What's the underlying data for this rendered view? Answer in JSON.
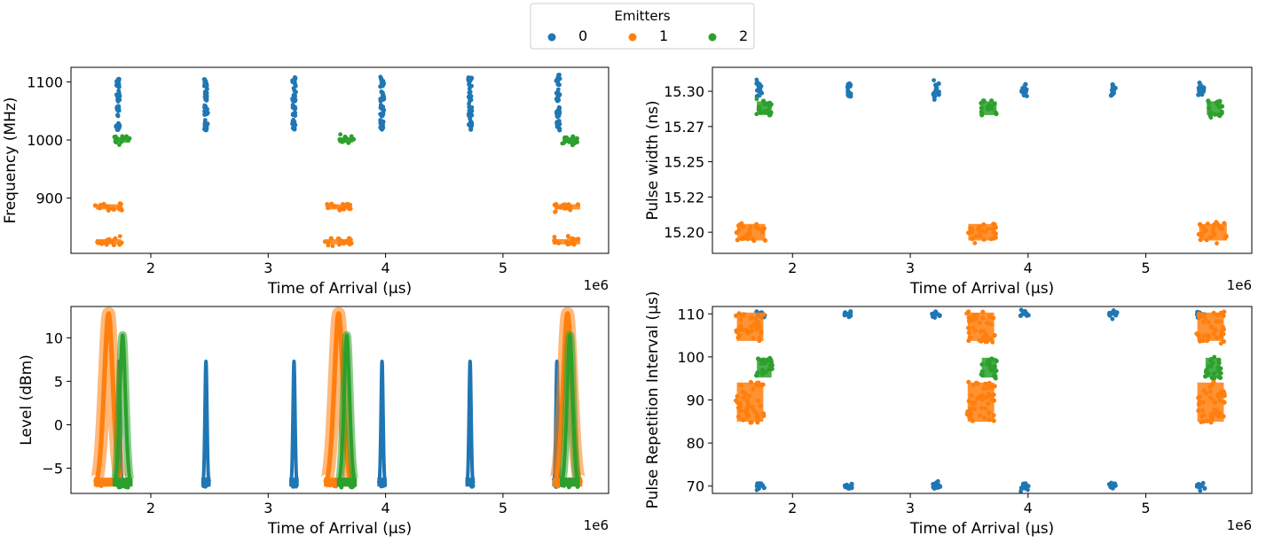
{
  "legend": {
    "title": "Emitters",
    "entries": [
      {
        "label": "0",
        "color": "#1f77b4"
      },
      {
        "label": "1",
        "color": "#ff7f0e"
      },
      {
        "label": "2",
        "color": "#2ca02c"
      }
    ]
  },
  "chart_data": [
    {
      "type": "scatter",
      "id": "freq",
      "xlabel": "Time of Arrival (μs)",
      "ylabel": "Frequency (MHz)",
      "x_offset_label": "1e6",
      "xlim": [
        1.32,
        5.9
      ],
      "ylim": [
        805,
        1125
      ],
      "xticks": [
        2,
        3,
        4,
        5
      ],
      "xtick_labels": [
        "2",
        "3",
        "4",
        "5"
      ],
      "yticks": [
        900,
        1000,
        1100
      ],
      "ytick_labels": [
        "900",
        "1000",
        "1100"
      ],
      "series": [
        {
          "name": "0",
          "color": "#1f77b4",
          "clusters": [
            {
              "x": 1.72,
              "y": 1100,
              "w": 0.03,
              "h": 16
            },
            {
              "x": 1.72,
              "y": 1075,
              "w": 0.03,
              "h": 16
            },
            {
              "x": 1.72,
              "y": 1050,
              "w": 0.03,
              "h": 16
            },
            {
              "x": 1.72,
              "y": 1025,
              "w": 0.03,
              "h": 16
            },
            {
              "x": 2.47,
              "y": 1100,
              "w": 0.03,
              "h": 16
            },
            {
              "x": 2.47,
              "y": 1075,
              "w": 0.03,
              "h": 16
            },
            {
              "x": 2.47,
              "y": 1050,
              "w": 0.03,
              "h": 16
            },
            {
              "x": 2.47,
              "y": 1025,
              "w": 0.03,
              "h": 16
            },
            {
              "x": 3.22,
              "y": 1100,
              "w": 0.03,
              "h": 16
            },
            {
              "x": 3.22,
              "y": 1075,
              "w": 0.03,
              "h": 16
            },
            {
              "x": 3.22,
              "y": 1050,
              "w": 0.03,
              "h": 16
            },
            {
              "x": 3.22,
              "y": 1025,
              "w": 0.03,
              "h": 16
            },
            {
              "x": 3.97,
              "y": 1100,
              "w": 0.03,
              "h": 16
            },
            {
              "x": 3.97,
              "y": 1075,
              "w": 0.03,
              "h": 16
            },
            {
              "x": 3.97,
              "y": 1050,
              "w": 0.03,
              "h": 16
            },
            {
              "x": 3.97,
              "y": 1025,
              "w": 0.03,
              "h": 16
            },
            {
              "x": 4.72,
              "y": 1100,
              "w": 0.03,
              "h": 16
            },
            {
              "x": 4.72,
              "y": 1075,
              "w": 0.03,
              "h": 16
            },
            {
              "x": 4.72,
              "y": 1050,
              "w": 0.03,
              "h": 16
            },
            {
              "x": 4.72,
              "y": 1025,
              "w": 0.03,
              "h": 16
            },
            {
              "x": 5.47,
              "y": 1100,
              "w": 0.03,
              "h": 16
            },
            {
              "x": 5.47,
              "y": 1075,
              "w": 0.03,
              "h": 16
            },
            {
              "x": 5.47,
              "y": 1050,
              "w": 0.03,
              "h": 16
            },
            {
              "x": 5.47,
              "y": 1025,
              "w": 0.03,
              "h": 16
            }
          ]
        },
        {
          "name": "1",
          "color": "#ff7f0e",
          "clusters": [
            {
              "x": 1.64,
              "y": 885,
              "w": 0.23,
              "h": 12
            },
            {
              "x": 1.64,
              "y": 825,
              "w": 0.23,
              "h": 12
            },
            {
              "x": 3.6,
              "y": 885,
              "w": 0.23,
              "h": 12
            },
            {
              "x": 3.6,
              "y": 825,
              "w": 0.23,
              "h": 12
            },
            {
              "x": 5.55,
              "y": 885,
              "w": 0.23,
              "h": 12
            },
            {
              "x": 5.55,
              "y": 825,
              "w": 0.23,
              "h": 12
            }
          ]
        },
        {
          "name": "2",
          "color": "#2ca02c",
          "clusters": [
            {
              "x": 1.76,
              "y": 1000,
              "w": 0.14,
              "h": 12
            },
            {
              "x": 3.66,
              "y": 1000,
              "w": 0.14,
              "h": 12
            },
            {
              "x": 5.57,
              "y": 1000,
              "w": 0.14,
              "h": 12
            }
          ]
        }
      ]
    },
    {
      "type": "scatter",
      "id": "pw",
      "xlabel": "Time of Arrival (μs)",
      "ylabel": "Pulse width (ns)",
      "x_offset_label": "1e6",
      "xlim": [
        1.32,
        5.9
      ],
      "ylim": [
        15.185,
        15.317
      ],
      "xticks": [
        2,
        3,
        4,
        5
      ],
      "xtick_labels": [
        "2",
        "3",
        "4",
        "5"
      ],
      "yticks": [
        15.2,
        15.225,
        15.25,
        15.275,
        15.3
      ],
      "ytick_labels": [
        "15.20",
        "15.22",
        "15.25",
        "15.27",
        "15.30"
      ],
      "series": [
        {
          "name": "0",
          "color": "#1f77b4",
          "clusters": [
            {
              "x": 1.72,
              "y": 15.301,
              "w": 0.05,
              "h": 0.012
            },
            {
              "x": 2.47,
              "y": 15.301,
              "w": 0.05,
              "h": 0.01
            },
            {
              "x": 3.22,
              "y": 15.301,
              "w": 0.05,
              "h": 0.011
            },
            {
              "x": 3.97,
              "y": 15.301,
              "w": 0.05,
              "h": 0.009
            },
            {
              "x": 4.72,
              "y": 15.301,
              "w": 0.05,
              "h": 0.009
            },
            {
              "x": 5.47,
              "y": 15.301,
              "w": 0.05,
              "h": 0.01
            }
          ]
        },
        {
          "name": "1",
          "color": "#ff7f0e",
          "clusters": [
            {
              "x": 1.65,
              "y": 15.2,
              "w": 0.25,
              "h": 0.013
            },
            {
              "x": 3.61,
              "y": 15.2,
              "w": 0.25,
              "h": 0.013
            },
            {
              "x": 5.57,
              "y": 15.2,
              "w": 0.25,
              "h": 0.013
            }
          ]
        },
        {
          "name": "2",
          "color": "#2ca02c",
          "clusters": [
            {
              "x": 1.76,
              "y": 15.288,
              "w": 0.14,
              "h": 0.011
            },
            {
              "x": 3.67,
              "y": 15.288,
              "w": 0.14,
              "h": 0.011
            },
            {
              "x": 5.58,
              "y": 15.288,
              "w": 0.14,
              "h": 0.011
            }
          ]
        }
      ]
    },
    {
      "type": "scatter",
      "id": "level",
      "xlabel": "Time of Arrival (μs)",
      "ylabel": "Level (dBm)",
      "x_offset_label": "1e6",
      "xlim": [
        1.32,
        5.9
      ],
      "ylim": [
        -7.9,
        13.6
      ],
      "xticks": [
        2,
        3,
        4,
        5
      ],
      "xtick_labels": [
        "2",
        "3",
        "4",
        "5"
      ],
      "yticks": [
        -5,
        0,
        5,
        10
      ],
      "ytick_labels": [
        "−5",
        "0",
        "5",
        "10"
      ],
      "series": [
        {
          "name": "0",
          "color": "#1f77b4",
          "peaks": [
            {
              "x": 1.73,
              "peak": 7.3,
              "halfwidth": 0.025
            },
            {
              "x": 2.47,
              "peak": 7.3,
              "halfwidth": 0.025
            },
            {
              "x": 3.22,
              "peak": 7.3,
              "halfwidth": 0.025
            },
            {
              "x": 3.97,
              "peak": 7.3,
              "halfwidth": 0.025
            },
            {
              "x": 4.72,
              "peak": 7.3,
              "halfwidth": 0.025
            },
            {
              "x": 5.46,
              "peak": 7.3,
              "halfwidth": 0.025
            }
          ]
        },
        {
          "name": "1",
          "color": "#ff7f0e",
          "peaks": [
            {
              "x": 1.64,
              "peak": 12.8,
              "halfwidth": 0.11
            },
            {
              "x": 3.6,
              "peak": 12.8,
              "halfwidth": 0.11
            },
            {
              "x": 5.55,
              "peak": 12.8,
              "halfwidth": 0.11
            }
          ]
        },
        {
          "name": "2",
          "color": "#2ca02c",
          "peaks": [
            {
              "x": 1.76,
              "peak": 10.3,
              "halfwidth": 0.07
            },
            {
              "x": 3.67,
              "peak": 10.3,
              "halfwidth": 0.07
            },
            {
              "x": 5.57,
              "peak": 10.3,
              "halfwidth": 0.07
            }
          ]
        }
      ]
    },
    {
      "type": "scatter",
      "id": "pri",
      "xlabel": "Time of Arrival (μs)",
      "ylabel": "Pulse Repetition Interval (μs)",
      "x_offset_label": "1e6",
      "xlim": [
        1.32,
        5.9
      ],
      "ylim": [
        68.3,
        111.7
      ],
      "xticks": [
        2,
        3,
        4,
        5
      ],
      "xtick_labels": [
        "2",
        "3",
        "4",
        "5"
      ],
      "yticks": [
        70,
        80,
        90,
        100,
        110
      ],
      "ytick_labels": [
        "70",
        "80",
        "90",
        "100",
        "110"
      ],
      "series": [
        {
          "name": "0",
          "color": "#1f77b4",
          "clusters": [
            {
              "x": 1.73,
              "y": 70,
              "w": 0.07,
              "h": 1.2
            },
            {
              "x": 2.47,
              "y": 70,
              "w": 0.07,
              "h": 1.2
            },
            {
              "x": 3.22,
              "y": 70,
              "w": 0.07,
              "h": 1.2
            },
            {
              "x": 3.97,
              "y": 70,
              "w": 0.07,
              "h": 1.2
            },
            {
              "x": 4.72,
              "y": 70,
              "w": 0.07,
              "h": 1.2
            },
            {
              "x": 5.47,
              "y": 70,
              "w": 0.07,
              "h": 1.2
            },
            {
              "x": 1.73,
              "y": 110,
              "w": 0.07,
              "h": 1.2
            },
            {
              "x": 2.47,
              "y": 110,
              "w": 0.07,
              "h": 1.2
            },
            {
              "x": 3.22,
              "y": 110,
              "w": 0.07,
              "h": 1.2
            },
            {
              "x": 3.97,
              "y": 110,
              "w": 0.07,
              "h": 1.2
            },
            {
              "x": 4.72,
              "y": 110,
              "w": 0.07,
              "h": 1.2
            },
            {
              "x": 5.47,
              "y": 110,
              "w": 0.07,
              "h": 1.2
            }
          ]
        },
        {
          "name": "1",
          "color": "#ff7f0e",
          "clusters": [
            {
              "x": 1.64,
              "y": 107,
              "w": 0.24,
              "h": 7
            },
            {
              "x": 1.64,
              "y": 89.5,
              "w": 0.24,
              "h": 9.5
            },
            {
              "x": 3.6,
              "y": 107,
              "w": 0.24,
              "h": 7
            },
            {
              "x": 3.6,
              "y": 89.5,
              "w": 0.24,
              "h": 9.5
            },
            {
              "x": 5.55,
              "y": 107,
              "w": 0.24,
              "h": 7
            },
            {
              "x": 5.55,
              "y": 89.5,
              "w": 0.24,
              "h": 9.5
            }
          ]
        },
        {
          "name": "2",
          "color": "#2ca02c",
          "clusters": [
            {
              "x": 1.76,
              "y": 97.5,
              "w": 0.14,
              "h": 5
            },
            {
              "x": 3.67,
              "y": 97.5,
              "w": 0.14,
              "h": 5
            },
            {
              "x": 5.57,
              "y": 97.5,
              "w": 0.14,
              "h": 5
            }
          ]
        }
      ]
    }
  ]
}
